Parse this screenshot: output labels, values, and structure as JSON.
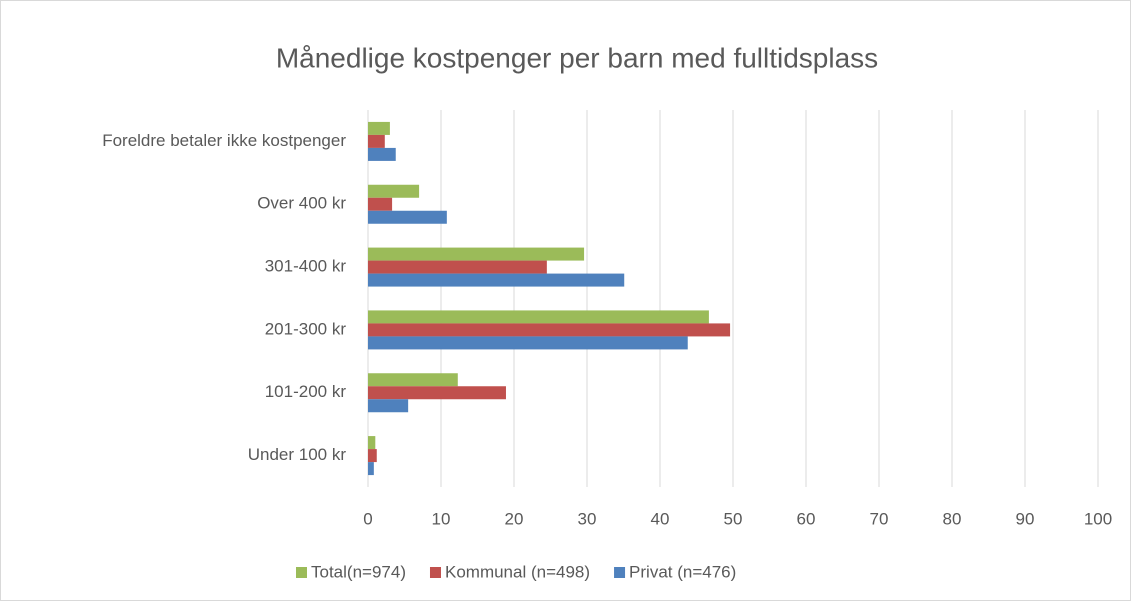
{
  "chart_data": {
    "type": "bar",
    "orientation": "horizontal",
    "title": "Månedlige kostpenger per barn med fulltidsplass",
    "categories": [
      "Foreldre betaler ikke kostpenger",
      "Over 400 kr",
      "301-400 kr",
      "201-300 kr",
      "101-200 kr",
      "Under 100 kr"
    ],
    "series": [
      {
        "name": "Total(n=974)",
        "color": "#9bbb59",
        "values": [
          3.0,
          7.0,
          29.6,
          46.7,
          12.3,
          1.0
        ]
      },
      {
        "name": "Kommunal (n=498)",
        "color": "#c0504d",
        "values": [
          2.3,
          3.3,
          24.5,
          49.6,
          18.9,
          1.2
        ]
      },
      {
        "name": "Privat (n=476)",
        "color": "#4f81bd",
        "values": [
          3.8,
          10.8,
          35.1,
          43.8,
          5.5,
          0.8
        ]
      }
    ],
    "xlim": [
      0,
      100
    ],
    "xticks": [
      0,
      10,
      20,
      30,
      40,
      50,
      60,
      70,
      80,
      90,
      100
    ],
    "grid": true,
    "legend": "bottom"
  }
}
